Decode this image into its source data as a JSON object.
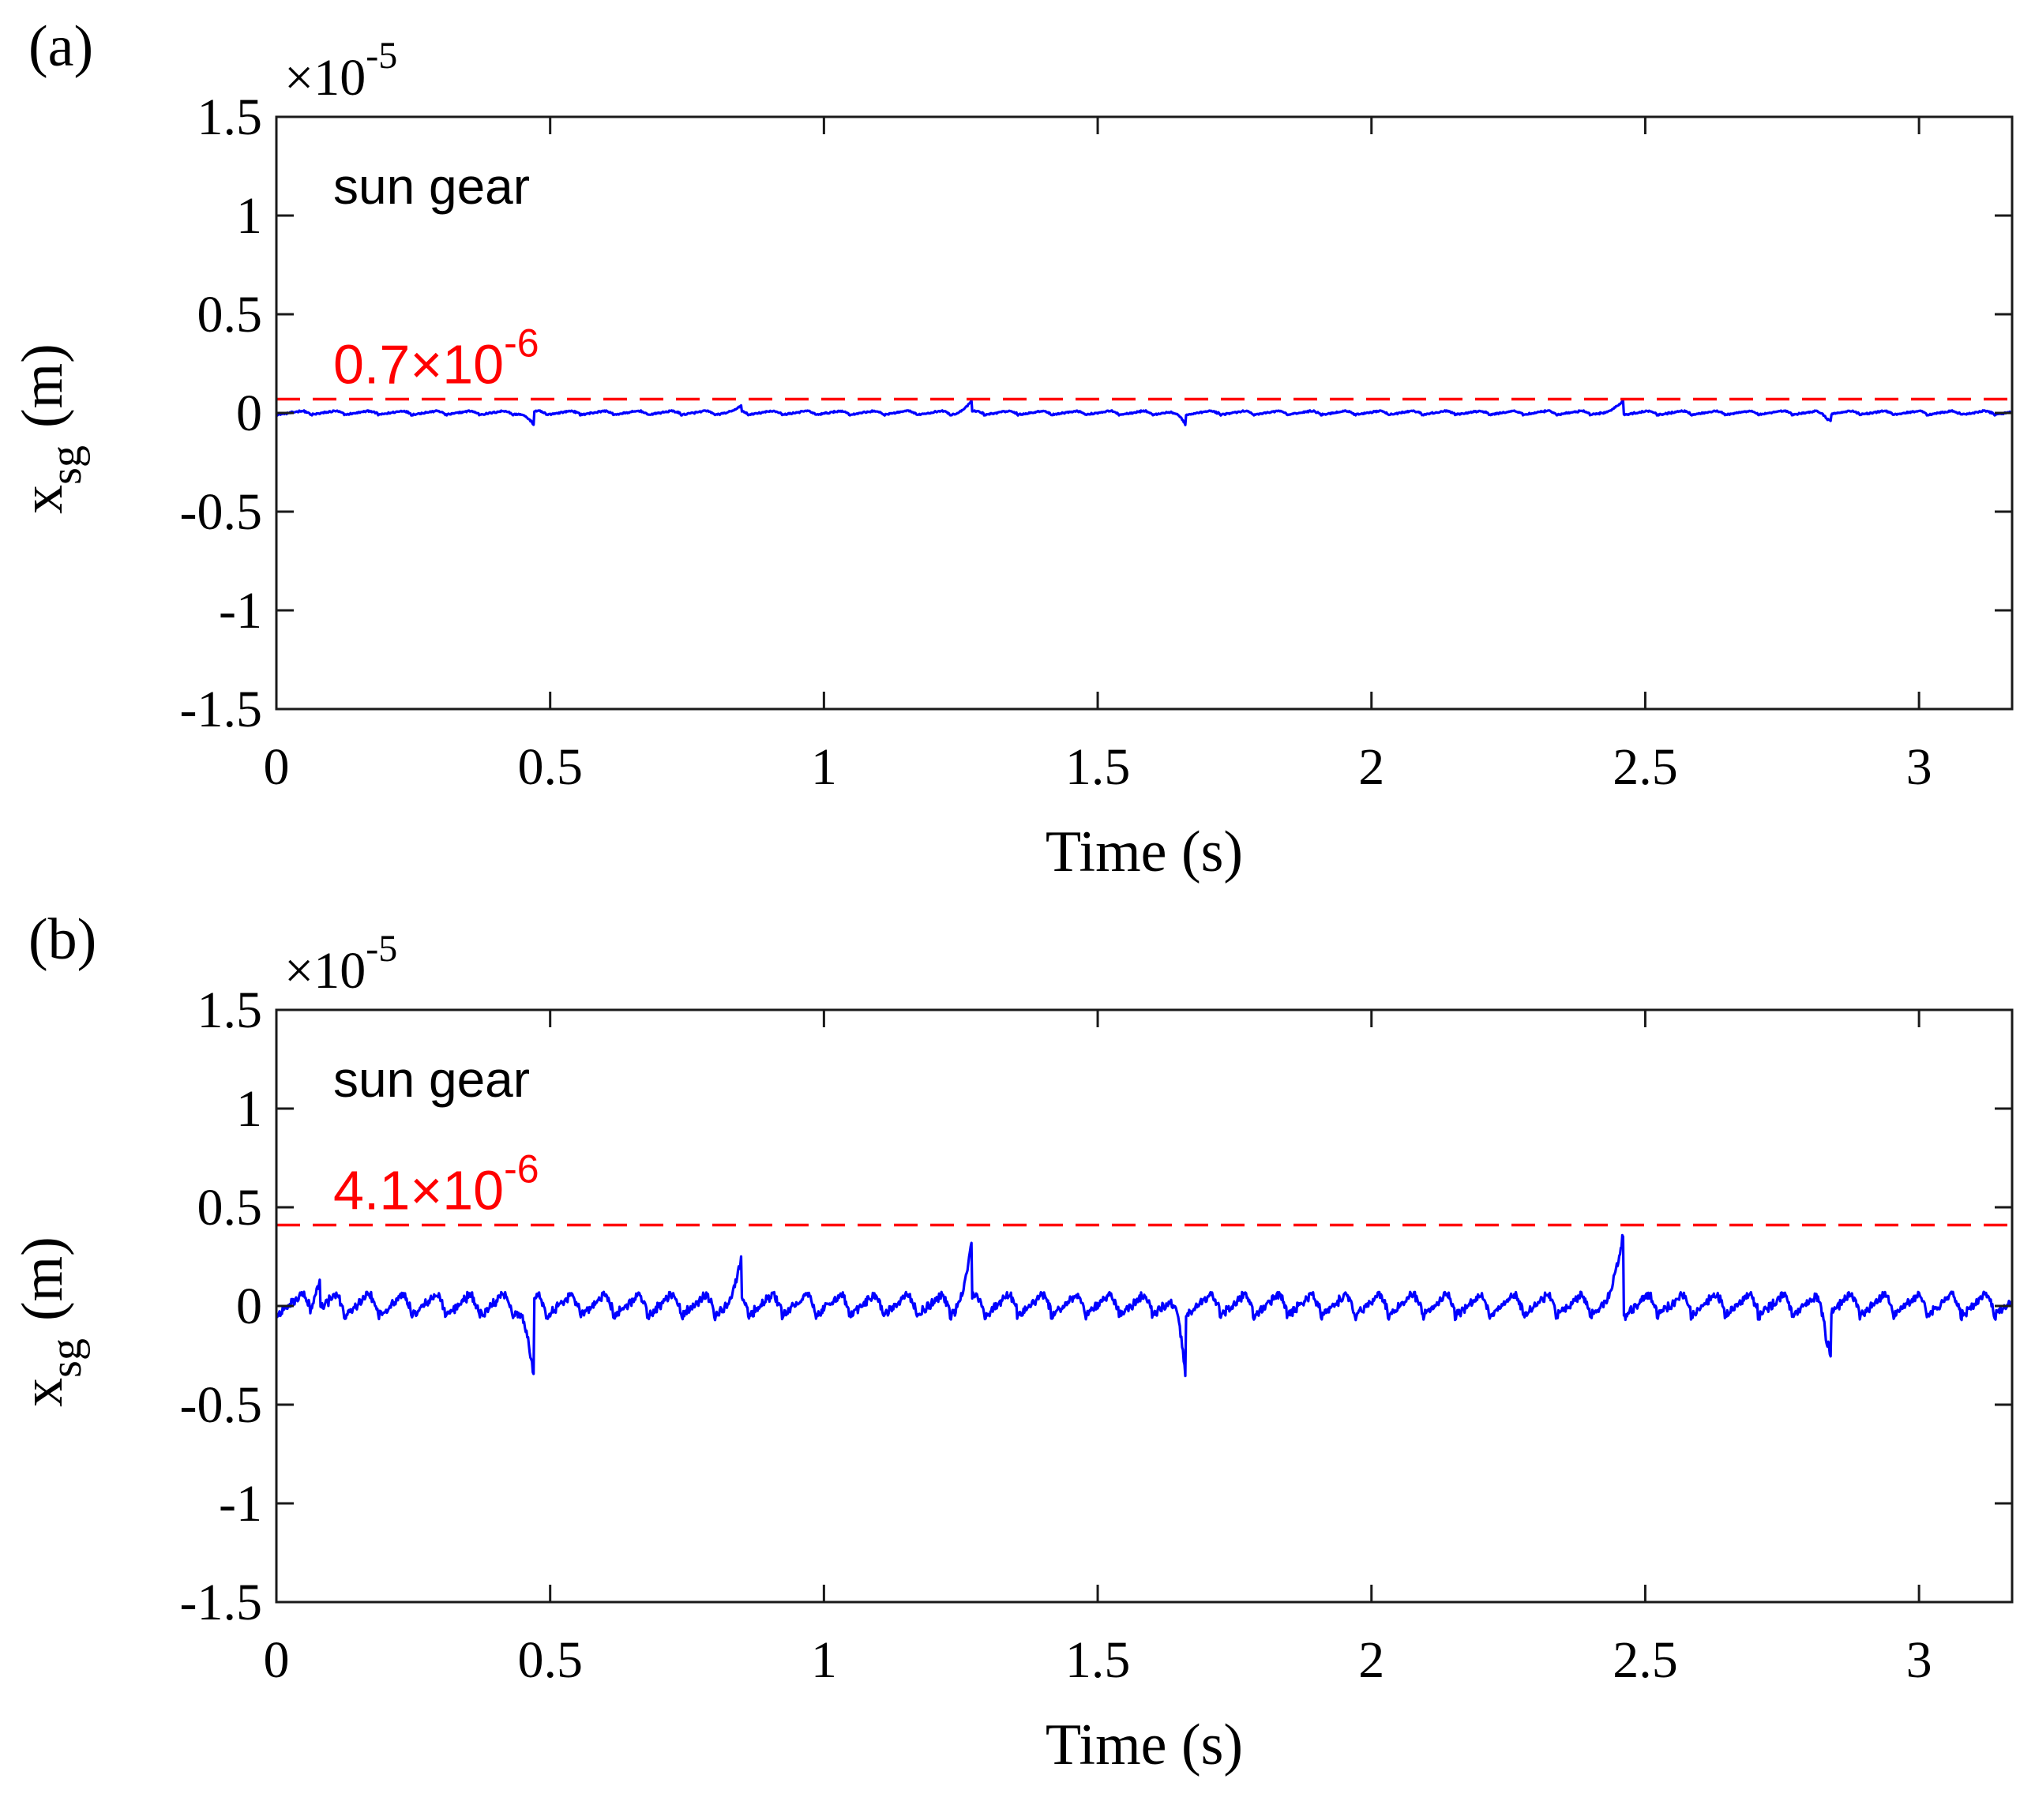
{
  "figure": {
    "panels": [
      {
        "panel_label": "(a)",
        "exponent_label": "×10",
        "exponent_value": "-5"
      },
      {
        "panel_label": "(b)",
        "exponent_label": "×10",
        "exponent_value": "-5"
      }
    ]
  },
  "colors": {
    "signal": "#0000ff",
    "threshold": "#ff0000",
    "axis": "#1a1a1a",
    "text": "#000000"
  },
  "chart_data": [
    {
      "type": "line",
      "panel": "(a)",
      "xlabel": "Time (s)",
      "ylabel_main": "x",
      "ylabel_sub": "sg",
      "ylabel_unit": "(m)",
      "xlim": [
        0,
        3.17
      ],
      "ylim": [
        -1.5,
        1.5
      ],
      "xticks": [
        0,
        0.5,
        1,
        1.5,
        2,
        2.5,
        3
      ],
      "xtick_labels": [
        "0",
        "0.5",
        "1",
        "1.5",
        "2",
        "2.5",
        "3"
      ],
      "yticks": [
        1.5,
        1,
        0.5,
        0,
        -0.5,
        -1,
        -1.5
      ],
      "ytick_labels": [
        "1.5",
        "1",
        "0.5",
        "0",
        "-0.5",
        "-1",
        "-1.5"
      ],
      "scale_exponent": -5,
      "annotation": "sun gear",
      "threshold": {
        "value": 0.07,
        "label_mantissa": "0.7",
        "label_times": "×10",
        "label_exponent": "-6"
      },
      "series": [
        {
          "name": "x_sg",
          "amplitude": 0.018,
          "spike_scale": 0.07
        }
      ],
      "events": [
        {
          "t": 0.47,
          "peak": -0.07
        },
        {
          "t": 0.85,
          "peak": 0.03
        },
        {
          "t": 1.27,
          "peak": 0.06
        },
        {
          "t": 1.66,
          "peak": -0.06
        },
        {
          "t": 2.46,
          "peak": 0.07
        },
        {
          "t": 2.84,
          "peak": -0.04
        }
      ]
    },
    {
      "type": "line",
      "panel": "(b)",
      "xlabel": "Time (s)",
      "ylabel_main": "x",
      "ylabel_sub": "sg",
      "ylabel_unit": "(m)",
      "xlim": [
        0,
        3.17
      ],
      "ylim": [
        -1.5,
        1.5
      ],
      "xticks": [
        0,
        0.5,
        1,
        1.5,
        2,
        2.5,
        3
      ],
      "xtick_labels": [
        "0",
        "0.5",
        "1",
        "1.5",
        "2",
        "2.5",
        "3"
      ],
      "yticks": [
        1.5,
        1,
        0.5,
        0,
        -0.5,
        -1,
        -1.5
      ],
      "ytick_labels": [
        "1.5",
        "1",
        "0.5",
        "0",
        "-0.5",
        "-1",
        "-1.5"
      ],
      "scale_exponent": -5,
      "annotation": "sun gear",
      "threshold": {
        "value": 0.41,
        "label_mantissa": "4.1",
        "label_times": "×10",
        "label_exponent": "-6"
      },
      "series": [
        {
          "name": "x_sg",
          "amplitude": 0.1,
          "spike_scale": 0.41
        }
      ],
      "events": [
        {
          "t": 0.08,
          "peak": 0.16
        },
        {
          "t": 0.47,
          "peak": -0.42
        },
        {
          "t": 0.85,
          "peak": 0.21
        },
        {
          "t": 1.27,
          "peak": 0.32
        },
        {
          "t": 1.66,
          "peak": -0.36
        },
        {
          "t": 2.46,
          "peak": 0.41
        },
        {
          "t": 2.84,
          "peak": -0.25
        }
      ]
    }
  ]
}
